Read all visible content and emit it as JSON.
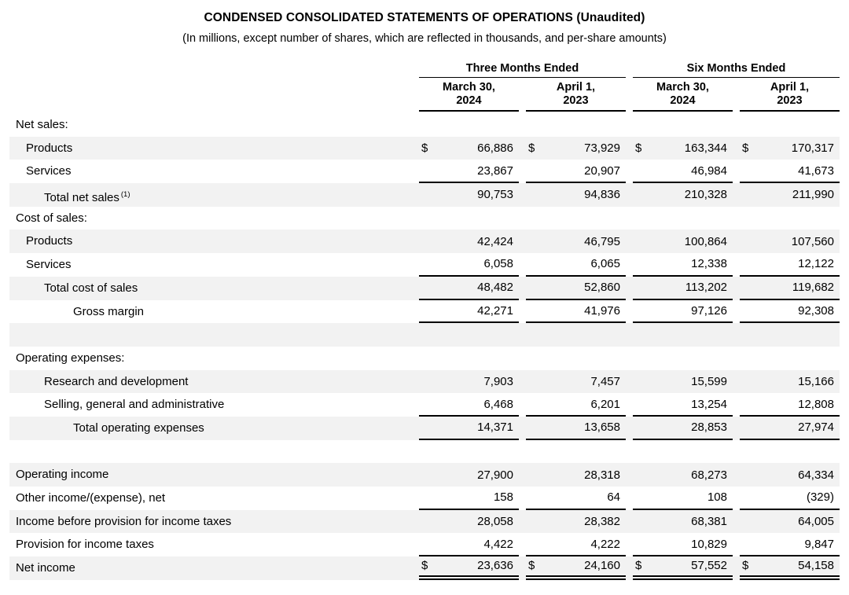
{
  "colors": {
    "text": "#000000",
    "rule": "#000000",
    "stripe": "#f2f2f2"
  },
  "title": "CONDENSED CONSOLIDATED STATEMENTS OF OPERATIONS (Unaudited)",
  "subtitle": "(In millions, except number of shares, which are reflected in thousands, and per-share amounts)",
  "table": {
    "currency": "$",
    "col_groups": [
      {
        "label": "Three Months Ended",
        "cols": [
          {
            "l1": "March 30,",
            "l2": "2024"
          },
          {
            "l1": "April 1,",
            "l2": "2023"
          }
        ]
      },
      {
        "label": "Six Months Ended",
        "cols": [
          {
            "l1": "March 30,",
            "l2": "2024"
          },
          {
            "l1": "April 1,",
            "l2": "2023"
          }
        ]
      }
    ],
    "rows": [
      {
        "label": "Net sales:",
        "values": null
      },
      {
        "label": "Products",
        "values": [
          "66,886",
          "73,929",
          "163,344",
          "170,317"
        ]
      },
      {
        "label": "Services",
        "values": [
          "23,867",
          "20,907",
          "46,984",
          "41,673"
        ]
      },
      {
        "label": "Total net sales",
        "footnote": "(1)",
        "values": [
          "90,753",
          "94,836",
          "210,328",
          "211,990"
        ]
      },
      {
        "label": "Cost of sales:",
        "values": null
      },
      {
        "label": "Products",
        "values": [
          "42,424",
          "46,795",
          "100,864",
          "107,560"
        ]
      },
      {
        "label": "Services",
        "values": [
          "6,058",
          "6,065",
          "12,338",
          "12,122"
        ]
      },
      {
        "label": "Total cost of sales",
        "values": [
          "48,482",
          "52,860",
          "113,202",
          "119,682"
        ]
      },
      {
        "label": "Gross margin",
        "values": [
          "42,271",
          "41,976",
          "97,126",
          "92,308"
        ]
      },
      {
        "label": "",
        "values": null
      },
      {
        "label": "Operating expenses:",
        "values": null
      },
      {
        "label": "Research and development",
        "values": [
          "7,903",
          "7,457",
          "15,599",
          "15,166"
        ]
      },
      {
        "label": "Selling, general and administrative",
        "values": [
          "6,468",
          "6,201",
          "13,254",
          "12,808"
        ]
      },
      {
        "label": "Total operating expenses",
        "values": [
          "14,371",
          "13,658",
          "28,853",
          "27,974"
        ]
      },
      {
        "label": "",
        "values": null
      },
      {
        "label": "Operating income",
        "values": [
          "27,900",
          "28,318",
          "68,273",
          "64,334"
        ]
      },
      {
        "label": "Other income/(expense), net",
        "values": [
          "158",
          "64",
          "108",
          "(329)"
        ]
      },
      {
        "label": "Income before provision for income taxes",
        "values": [
          "28,058",
          "28,382",
          "68,381",
          "64,005"
        ]
      },
      {
        "label": "Provision for income taxes",
        "values": [
          "4,422",
          "4,222",
          "10,829",
          "9,847"
        ]
      },
      {
        "label": "Net income",
        "values": [
          "23,636",
          "24,160",
          "57,552",
          "54,158"
        ]
      }
    ]
  }
}
